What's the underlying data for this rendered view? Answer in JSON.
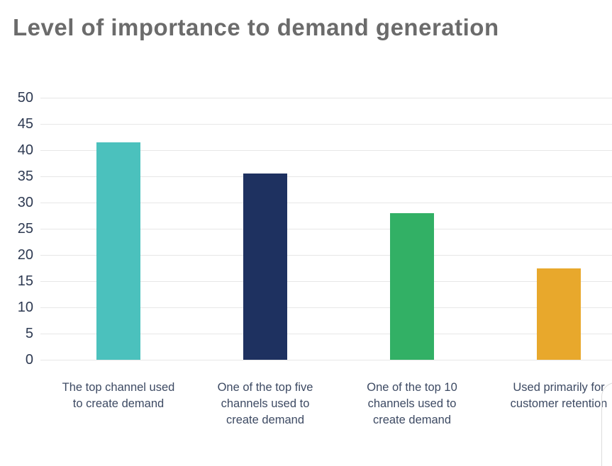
{
  "chart_data": {
    "type": "bar",
    "title": "Level of importance to demand generation",
    "title_color": "#6b6b6b",
    "categories": [
      "The top channel used to create demand",
      "One of the top five channels used to create demand",
      "One of the top 10 channels used to create demand",
      "Used primarily for customer retention"
    ],
    "values": [
      41.5,
      35.5,
      28,
      17.5
    ],
    "bar_colors": [
      "#4bc1bd",
      "#1e3160",
      "#32b065",
      "#e8a82c"
    ],
    "xlabel": "",
    "ylabel": "",
    "ylim": [
      0,
      50
    ],
    "yticks": [
      0,
      5,
      10,
      15,
      20,
      25,
      30,
      35,
      40,
      45,
      50
    ],
    "grid": "horizontal",
    "legend": "none",
    "gridline_color": "#e7e7e7",
    "ytick_label_color": "#2e3a52",
    "category_label_color": "#3d4a63"
  }
}
